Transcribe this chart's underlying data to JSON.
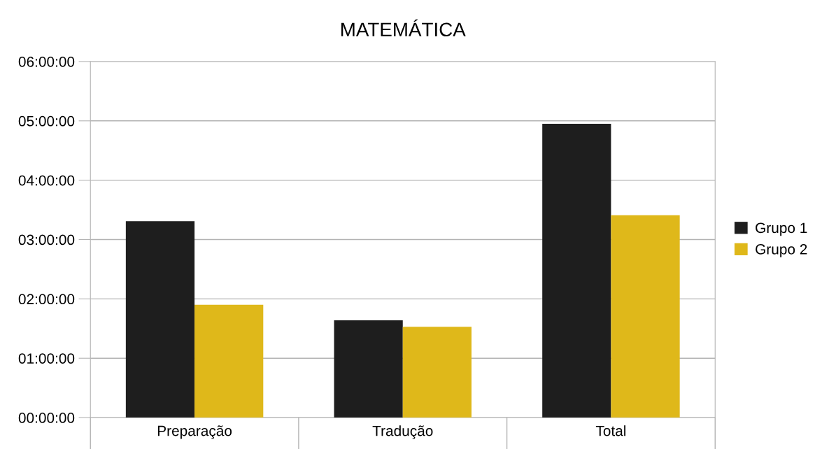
{
  "chart_data": {
    "type": "bar",
    "title": "MATEMÁTICA",
    "categories": [
      "Preparação",
      "Tradução",
      "Total"
    ],
    "series": [
      {
        "name": "Grupo 1",
        "color": "#1e1e1e",
        "values": [
          3.31,
          1.64,
          4.95
        ]
      },
      {
        "name": "Grupo 2",
        "color": "#dfb81a",
        "values": [
          1.9,
          1.53,
          3.41
        ]
      }
    ],
    "ylim": [
      0,
      6
    ],
    "yticks": [
      {
        "value": 0,
        "label": "00:00:00"
      },
      {
        "value": 1,
        "label": "01:00:00"
      },
      {
        "value": 2,
        "label": "02:00:00"
      },
      {
        "value": 3,
        "label": "03:00:00"
      },
      {
        "value": 4,
        "label": "04:00:00"
      },
      {
        "value": 5,
        "label": "05:00:00"
      },
      {
        "value": 6,
        "label": "06:00:00"
      }
    ],
    "grid": "y",
    "legend": "right"
  }
}
